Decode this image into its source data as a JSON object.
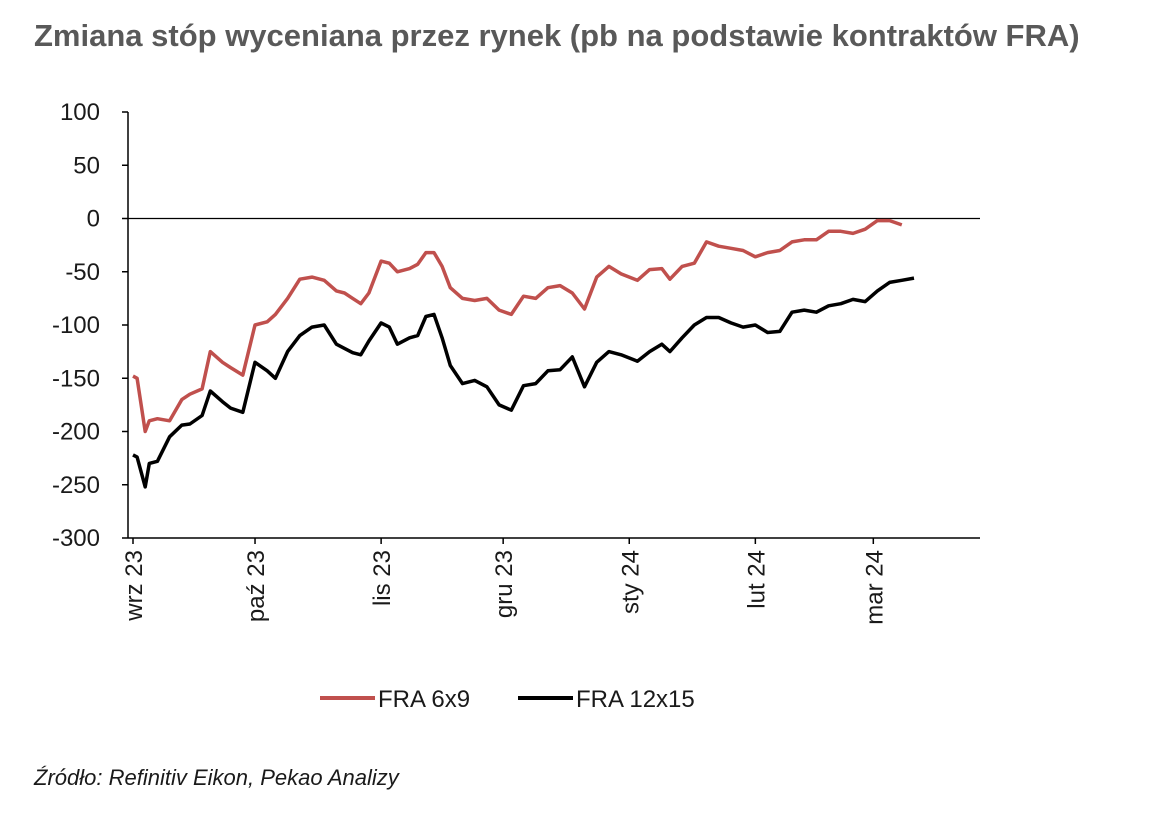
{
  "title": "Zmiana stóp wyceniana przez rynek (pb na podstawie kontraktów FRA)",
  "source": "Źródło: Refinitiv Eikon, Pekao Analizy",
  "chart_data": {
    "type": "line",
    "title": "Zmiana stóp wyceniana przez rynek (pb na podstawie kontraktów FRA)",
    "xlabel": "",
    "ylabel": "",
    "ylim": [
      -300,
      100
    ],
    "yticks": [
      100,
      50,
      0,
      -50,
      -100,
      -150,
      -200,
      -250,
      -300
    ],
    "grid": false,
    "zero_line": true,
    "legend_position": "bottom",
    "x_dates": [
      "2023-09-01",
      "2023-09-02",
      "2023-09-04",
      "2023-09-05",
      "2023-09-07",
      "2023-09-10",
      "2023-09-13",
      "2023-09-15",
      "2023-09-18",
      "2023-09-20",
      "2023-09-23",
      "2023-09-25",
      "2023-09-28",
      "2023-10-01",
      "2023-10-04",
      "2023-10-06",
      "2023-10-09",
      "2023-10-12",
      "2023-10-15",
      "2023-10-18",
      "2023-10-21",
      "2023-10-23",
      "2023-10-25",
      "2023-10-27",
      "2023-10-29",
      "2023-11-01",
      "2023-11-03",
      "2023-11-05",
      "2023-11-08",
      "2023-11-10",
      "2023-11-12",
      "2023-11-14",
      "2023-11-16",
      "2023-11-18",
      "2023-11-21",
      "2023-11-24",
      "2023-11-27",
      "2023-11-30",
      "2023-12-03",
      "2023-12-06",
      "2023-12-09",
      "2023-12-12",
      "2023-12-15",
      "2023-12-18",
      "2023-12-21",
      "2023-12-24",
      "2023-12-27",
      "2023-12-30",
      "2024-01-03",
      "2024-01-06",
      "2024-01-09",
      "2024-01-11",
      "2024-01-14",
      "2024-01-17",
      "2024-01-20",
      "2024-01-23",
      "2024-01-26",
      "2024-01-29",
      "2024-02-01",
      "2024-02-04",
      "2024-02-07",
      "2024-02-10",
      "2024-02-13",
      "2024-02-16",
      "2024-02-19",
      "2024-02-22",
      "2024-02-25",
      "2024-02-28",
      "2024-03-02",
      "2024-03-05",
      "2024-03-08",
      "2024-03-11",
      "2024-03-14",
      "2024-03-17",
      "2024-03-20",
      "2024-03-23",
      "2024-03-26"
    ],
    "xticks": [
      {
        "date": "2023-09-01",
        "label": "wrz 23"
      },
      {
        "date": "2023-10-01",
        "label": "paź 23"
      },
      {
        "date": "2023-11-01",
        "label": "lis 23"
      },
      {
        "date": "2023-12-01",
        "label": "gru 23"
      },
      {
        "date": "2024-01-01",
        "label": "sty 24"
      },
      {
        "date": "2024-02-01",
        "label": "lut 24"
      },
      {
        "date": "2024-03-01",
        "label": "mar 24"
      }
    ],
    "series": [
      {
        "name": "FRA 6x9",
        "color": "#c0504d",
        "values": [
          -148,
          -150,
          -200,
          -190,
          -188,
          -190,
          -170,
          -165,
          -160,
          -125,
          -135,
          -140,
          -147,
          -100,
          -97,
          -90,
          -75,
          -57,
          -55,
          -58,
          -68,
          -70,
          -75,
          -80,
          -70,
          -40,
          -42,
          -50,
          -47,
          -43,
          -32,
          -32,
          -45,
          -65,
          -75,
          -77,
          -75,
          -86,
          -90,
          -73,
          -75,
          -65,
          -63,
          -70,
          -85,
          -55,
          -45,
          -52,
          -58,
          -48,
          -47,
          -57,
          -45,
          -42,
          -22,
          -26,
          -28,
          -30,
          -36,
          -32,
          -30,
          -22,
          -20,
          -20,
          -12,
          -12,
          -14,
          -10,
          -2,
          -2,
          -6,
          null,
          null,
          null,
          null,
          null,
          null
        ]
      },
      {
        "name": "FRA 12x15",
        "color": "#000000",
        "values": [
          -222,
          -224,
          -252,
          -230,
          -228,
          -205,
          -194,
          -193,
          -185,
          -162,
          -172,
          -178,
          -182,
          -135,
          -143,
          -150,
          -125,
          -110,
          -102,
          -100,
          -118,
          -122,
          -126,
          -128,
          -115,
          -98,
          -102,
          -118,
          -112,
          -110,
          -92,
          -90,
          -112,
          -138,
          -155,
          -152,
          -158,
          -175,
          -180,
          -157,
          -155,
          -143,
          -142,
          -130,
          -158,
          -135,
          -125,
          -128,
          -134,
          -125,
          -118,
          -125,
          -112,
          -100,
          -93,
          -93,
          -98,
          -102,
          -100,
          -107,
          -106,
          -88,
          -86,
          -88,
          -82,
          -80,
          -76,
          -78,
          -68,
          -60,
          -58,
          -56,
          null,
          null,
          null,
          null,
          null
        ]
      }
    ]
  }
}
